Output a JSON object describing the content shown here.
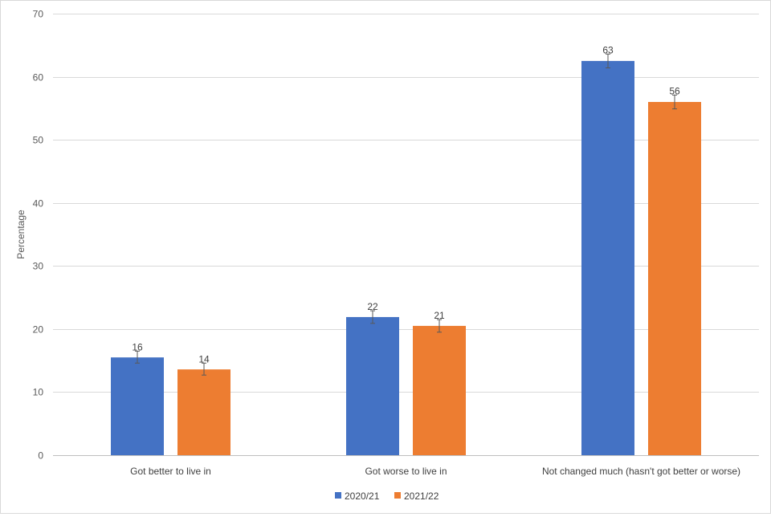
{
  "chart_data": {
    "type": "bar",
    "title": "",
    "xlabel": "",
    "ylabel": "Percentage",
    "ylim": [
      0,
      70
    ],
    "yticks": [
      0,
      10,
      20,
      30,
      40,
      50,
      60,
      70
    ],
    "grid": true,
    "legend_position": "bottom",
    "categories": [
      "Got better to live in",
      "Got worse to live in",
      "Not changed much (hasn't got better or worse)"
    ],
    "series": [
      {
        "name": "2020/21",
        "color": "#4472C4",
        "values": [
          15.5,
          21.9,
          62.5
        ],
        "labels": [
          "16",
          "22",
          "63"
        ],
        "error_low": [
          14.6,
          20.9,
          61.4
        ],
        "error_high": [
          16.5,
          22.9,
          63.6
        ]
      },
      {
        "name": "2021/22",
        "color": "#ED7D31",
        "values": [
          13.6,
          20.5,
          56.0
        ],
        "labels": [
          "14",
          "21",
          "56"
        ],
        "error_low": [
          12.7,
          19.5,
          54.9
        ],
        "error_high": [
          14.6,
          21.5,
          57.1
        ]
      }
    ]
  }
}
